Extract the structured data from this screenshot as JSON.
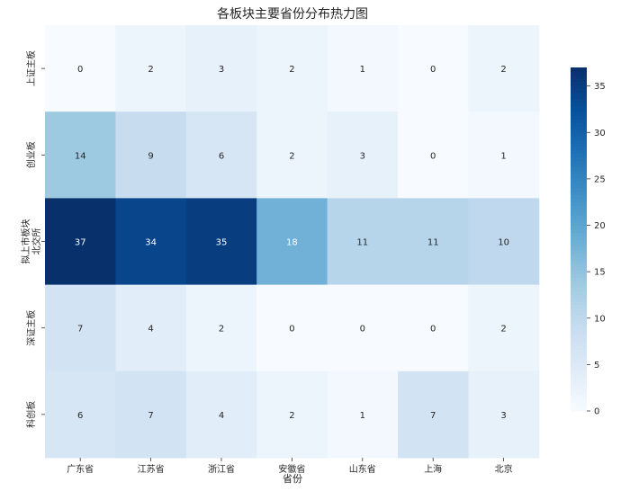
{
  "chart_data": {
    "type": "heatmap",
    "title": "各板块主要省份分布热力图",
    "xlabel": "省份",
    "ylabel": "",
    "x_categories": [
      "广东省",
      "江苏省",
      "浙江省",
      "安徽省",
      "山东省",
      "上海",
      "北京"
    ],
    "y_categories": [
      "上证主板",
      "创业板",
      "拟上市板块\n北交所",
      "深证主板",
      "科创板"
    ],
    "values": [
      [
        0,
        2,
        3,
        2,
        1,
        0,
        2
      ],
      [
        14,
        9,
        6,
        2,
        3,
        0,
        1
      ],
      [
        37,
        34,
        35,
        18,
        11,
        11,
        10
      ],
      [
        7,
        4,
        2,
        0,
        0,
        0,
        2
      ],
      [
        6,
        7,
        4,
        2,
        1,
        7,
        3
      ]
    ],
    "colorbar": {
      "min": 0,
      "max": 37,
      "ticks": [
        0,
        5,
        10,
        15,
        20,
        25,
        30,
        35
      ],
      "colormap": "Blues"
    },
    "annotations": true
  }
}
